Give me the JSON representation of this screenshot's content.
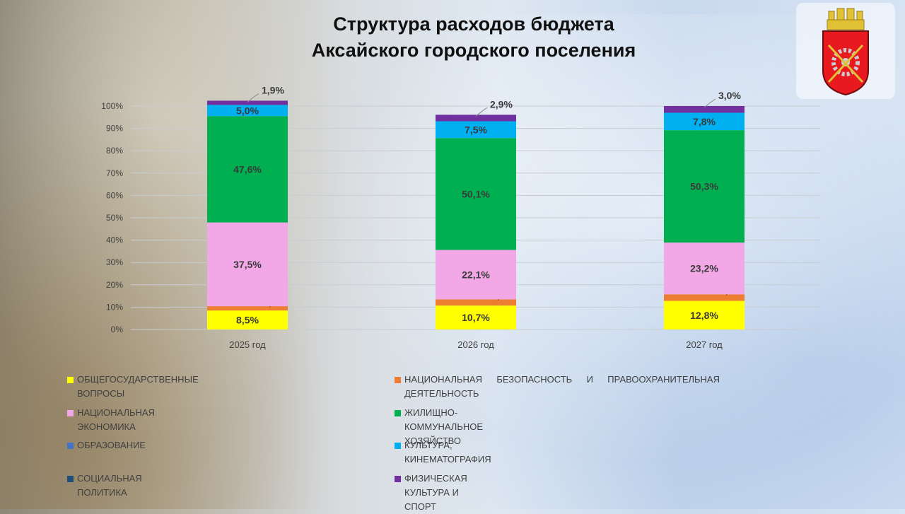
{
  "title": {
    "line1": "Структура расходов бюджета",
    "line2": "Аксайского городского поселения"
  },
  "chart_data": {
    "type": "bar",
    "stacked": true,
    "percent": true,
    "categories": [
      "2025 год",
      "2026 год",
      "2027 год"
    ],
    "ylim": [
      0,
      100
    ],
    "yticks": [
      "0%",
      "10%",
      "20%",
      "30%",
      "40%",
      "50%",
      "60%",
      "70%",
      "80%",
      "90%",
      "100%"
    ],
    "grid": true,
    "legend_position": "bottom",
    "series": [
      {
        "name": "ОБЩЕГОСУДАРСТВЕННЫЕ ВОПРОСЫ",
        "color": "#ffff00",
        "values": [
          8.5,
          10.7,
          12.8
        ],
        "labels": [
          "8,5%",
          "10,7%",
          "12,8%"
        ]
      },
      {
        "name": "НАЦИОНАЛЬНАЯ БЕЗОПАСНОСТЬ И ПРАВООХРАНИТЕЛЬНАЯ ДЕЯТЕЛЬНОСТЬ",
        "color": "#ed7d31",
        "values": [
          1.9,
          2.8,
          2.9
        ],
        "labels": [
          "1,9%",
          "2,8%",
          "2,9%"
        ]
      },
      {
        "name": "НАЦИОНАЛЬНАЯ ЭКОНОМИКА",
        "color": "#f2a7e6",
        "values": [
          37.5,
          22.1,
          23.2
        ],
        "labels": [
          "37,5%",
          "22,1%",
          "23,2%"
        ]
      },
      {
        "name": "ЖИЛИЩНО-КОММУНАЛЬНОЕ ХОЗЯЙСТВО",
        "color": "#00b050",
        "values": [
          47.6,
          50.1,
          50.3
        ],
        "labels": [
          "47,6%",
          "50,1%",
          "50,3%"
        ]
      },
      {
        "name": "ОБРАЗОВАНИЕ",
        "color": "#4472c4",
        "values": [
          0,
          0,
          0
        ],
        "labels": [
          "",
          "",
          ""
        ]
      },
      {
        "name": "КУЛЬТУРА, КИНЕМАТОГРАФИЯ",
        "color": "#00b0f0",
        "values": [
          5.0,
          7.5,
          7.8
        ],
        "labels": [
          "5,0%",
          "7,5%",
          "7,8%"
        ]
      },
      {
        "name": "СОЦИАЛЬНАЯ ПОЛИТИКА",
        "color": "#1f4e79",
        "values": [
          0,
          0,
          0
        ],
        "labels": [
          "",
          "",
          ""
        ]
      },
      {
        "name": "ФИЗИЧЕСКАЯ КУЛЬТУРА И СПОРТ",
        "color": "#7030a0",
        "values": [
          1.9,
          2.9,
          3.0
        ],
        "labels": [
          "1,9%",
          "2,9%",
          "3,0%"
        ]
      }
    ]
  },
  "emblem": {
    "icon": "coat-of-arms-icon",
    "colors": {
      "shield": "#e8191f",
      "crown": "#e2c235",
      "gear": "#c9ccd0"
    }
  }
}
